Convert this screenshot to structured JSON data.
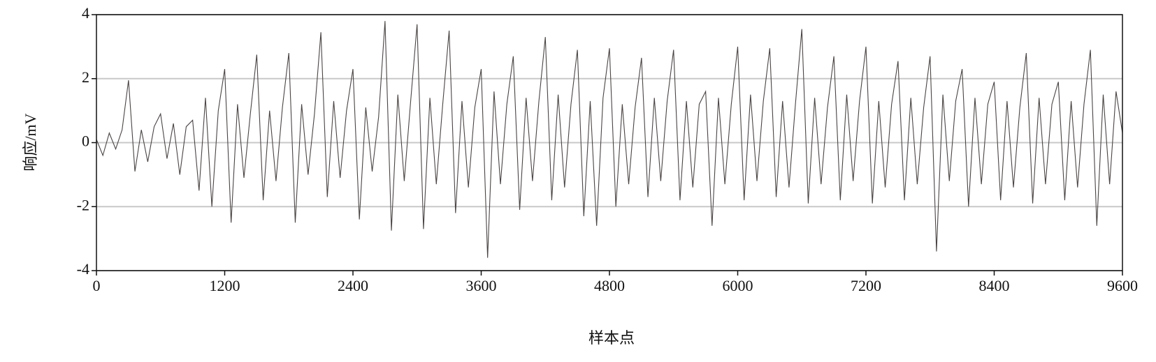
{
  "chart_data": {
    "type": "line",
    "xlabel": "样本点",
    "ylabel": "响应/mV",
    "x": [
      0,
      60,
      120,
      180,
      240,
      300,
      360,
      420,
      480,
      540,
      600,
      660,
      720,
      780,
      840,
      900,
      960,
      1020,
      1080,
      1140,
      1200,
      1260,
      1320,
      1380,
      1440,
      1500,
      1560,
      1620,
      1680,
      1740,
      1800,
      1860,
      1920,
      1980,
      2040,
      2100,
      2160,
      2220,
      2280,
      2340,
      2400,
      2460,
      2520,
      2580,
      2640,
      2700,
      2760,
      2820,
      2880,
      2940,
      3000,
      3060,
      3120,
      3180,
      3240,
      3300,
      3360,
      3420,
      3480,
      3540,
      3600,
      3660,
      3720,
      3780,
      3840,
      3900,
      3960,
      4020,
      4080,
      4140,
      4200,
      4260,
      4320,
      4380,
      4440,
      4500,
      4560,
      4620,
      4680,
      4740,
      4800,
      4860,
      4920,
      4980,
      5040,
      5100,
      5160,
      5220,
      5280,
      5340,
      5400,
      5460,
      5520,
      5580,
      5640,
      5700,
      5760,
      5820,
      5880,
      5940,
      6000,
      6060,
      6120,
      6180,
      6240,
      6300,
      6360,
      6420,
      6480,
      6540,
      6600,
      6660,
      6720,
      6780,
      6840,
      6900,
      6960,
      7020,
      7080,
      7140,
      7200,
      7260,
      7320,
      7380,
      7440,
      7500,
      7560,
      7620,
      7680,
      7740,
      7800,
      7860,
      7920,
      7980,
      8040,
      8100,
      8160,
      8220,
      8280,
      8340,
      8400,
      8460,
      8520,
      8580,
      8640,
      8700,
      8760,
      8820,
      8880,
      8940,
      9000,
      9060,
      9120,
      9180,
      9240,
      9300,
      9360,
      9420,
      9480,
      9540,
      9600
    ],
    "values": [
      0.1,
      -0.4,
      0.3,
      -0.2,
      0.4,
      1.95,
      -0.9,
      0.4,
      -0.6,
      0.5,
      0.9,
      -0.5,
      0.6,
      -1.0,
      0.5,
      0.7,
      -1.5,
      1.4,
      -2.0,
      1.0,
      2.3,
      -2.5,
      1.2,
      -1.1,
      0.9,
      2.75,
      -1.8,
      1.0,
      -1.2,
      1.1,
      2.8,
      -2.5,
      1.2,
      -1.0,
      0.9,
      3.45,
      -1.7,
      1.3,
      -1.1,
      1.0,
      2.3,
      -2.4,
      1.1,
      -0.9,
      0.8,
      3.8,
      -2.75,
      1.5,
      -1.2,
      1.3,
      3.7,
      -2.7,
      1.4,
      -1.3,
      1.2,
      3.5,
      -2.2,
      1.3,
      -1.4,
      1.1,
      2.3,
      -3.6,
      1.6,
      -1.3,
      1.2,
      2.7,
      -2.1,
      1.4,
      -1.2,
      1.3,
      3.3,
      -1.8,
      1.5,
      -1.4,
      1.2,
      2.9,
      -2.3,
      1.3,
      -2.6,
      1.4,
      2.95,
      -2.0,
      1.2,
      -1.3,
      1.1,
      2.65,
      -1.7,
      1.4,
      -1.2,
      1.3,
      2.9,
      -1.8,
      1.3,
      -1.4,
      1.2,
      1.6,
      -2.6,
      1.4,
      -1.3,
      1.2,
      3.0,
      -1.8,
      1.5,
      -1.2,
      1.3,
      2.95,
      -1.7,
      1.3,
      -1.4,
      1.2,
      3.55,
      -1.9,
      1.4,
      -1.3,
      1.1,
      2.7,
      -1.8,
      1.5,
      -1.2,
      1.3,
      3.0,
      -1.9,
      1.3,
      -1.4,
      1.2,
      2.55,
      -1.8,
      1.4,
      -1.3,
      1.1,
      2.7,
      -3.4,
      1.5,
      -1.2,
      1.3,
      2.3,
      -2.0,
      1.4,
      -1.3,
      1.2,
      1.9,
      -1.8,
      1.3,
      -1.4,
      1.1,
      2.8,
      -1.9,
      1.4,
      -1.3,
      1.2,
      1.9,
      -1.8,
      1.3,
      -1.4,
      1.2,
      2.9,
      -2.6,
      1.5,
      -1.3,
      1.6,
      0.3
    ],
    "color": "#4a4444",
    "xlim": [
      0,
      9600
    ],
    "xticks": [
      0,
      1200,
      2400,
      3600,
      4800,
      6000,
      7200,
      8400,
      9600
    ],
    "ylim": [
      -4,
      4
    ],
    "yticks": [
      -4,
      -2,
      0,
      2,
      4
    ],
    "grid": true
  }
}
